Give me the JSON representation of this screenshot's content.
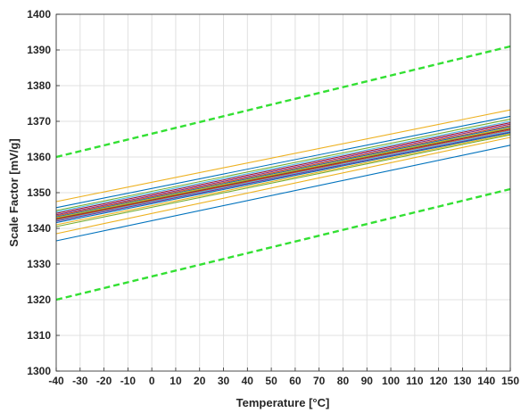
{
  "chart_data": {
    "type": "line",
    "title": "",
    "xlabel": "Temperature [°C]",
    "ylabel": "Scale Factor [mV/g]",
    "xlim": [
      -40,
      150
    ],
    "ylim": [
      1300,
      1400
    ],
    "xticks": [
      -40,
      -30,
      -20,
      -10,
      0,
      10,
      20,
      30,
      40,
      50,
      60,
      70,
      80,
      90,
      100,
      110,
      120,
      130,
      140,
      150
    ],
    "yticks": [
      1300,
      1310,
      1320,
      1330,
      1340,
      1350,
      1360,
      1370,
      1380,
      1390,
      1400
    ],
    "grid": true,
    "legend": "none",
    "limit_lines": [
      {
        "color": "#33e033",
        "style": "dashed",
        "x": [
          -40,
          150
        ],
        "y": [
          1360,
          1391
        ]
      },
      {
        "color": "#33e033",
        "style": "dashed",
        "x": [
          -40,
          150
        ],
        "y": [
          1320,
          1351
        ]
      }
    ],
    "series": [
      {
        "color": "#edb120",
        "x": [
          -40,
          150
        ],
        "y": [
          1347.5,
          1373.2
        ]
      },
      {
        "color": "#0072bd",
        "x": [
          -40,
          150
        ],
        "y": [
          1345.8,
          1371.4
        ]
      },
      {
        "color": "#77ac30",
        "x": [
          -40,
          150
        ],
        "y": [
          1345.0,
          1370.6
        ]
      },
      {
        "color": "#4dbeee",
        "x": [
          -40,
          150
        ],
        "y": [
          1344.6,
          1370.0
        ]
      },
      {
        "color": "#a2142f",
        "x": [
          -40,
          150
        ],
        "y": [
          1344.2,
          1369.6
        ]
      },
      {
        "color": "#7e2f8e",
        "x": [
          -40,
          150
        ],
        "y": [
          1343.8,
          1369.2
        ]
      },
      {
        "color": "#d95319",
        "x": [
          -40,
          150
        ],
        "y": [
          1343.5,
          1368.8
        ]
      },
      {
        "color": "#0072bd",
        "x": [
          -40,
          150
        ],
        "y": [
          1343.2,
          1368.5
        ]
      },
      {
        "color": "#edb120",
        "x": [
          -40,
          150
        ],
        "y": [
          1343.0,
          1368.2
        ]
      },
      {
        "color": "#77ac30",
        "x": [
          -40,
          150
        ],
        "y": [
          1342.8,
          1368.0
        ]
      },
      {
        "color": "#a2142f",
        "x": [
          -40,
          150
        ],
        "y": [
          1342.6,
          1367.8
        ]
      },
      {
        "color": "#d95319",
        "x": [
          -40,
          150
        ],
        "y": [
          1342.4,
          1367.5
        ]
      },
      {
        "color": "#4dbeee",
        "x": [
          -40,
          150
        ],
        "y": [
          1342.2,
          1367.3
        ]
      },
      {
        "color": "#7e2f8e",
        "x": [
          -40,
          150
        ],
        "y": [
          1342.0,
          1367.0
        ]
      },
      {
        "color": "#0072bd",
        "x": [
          -40,
          150
        ],
        "y": [
          1341.6,
          1366.8
        ]
      },
      {
        "color": "#edb120",
        "x": [
          -40,
          150
        ],
        "y": [
          1341.0,
          1366.5
        ]
      },
      {
        "color": "#77ac30",
        "x": [
          -40,
          150
        ],
        "y": [
          1340.5,
          1366.2
        ]
      },
      {
        "color": "#edb120",
        "x": [
          -40,
          150
        ],
        "y": [
          1338.5,
          1365.5
        ]
      },
      {
        "color": "#0072bd",
        "x": [
          -40,
          150
        ],
        "y": [
          1336.5,
          1363.3
        ]
      }
    ]
  }
}
